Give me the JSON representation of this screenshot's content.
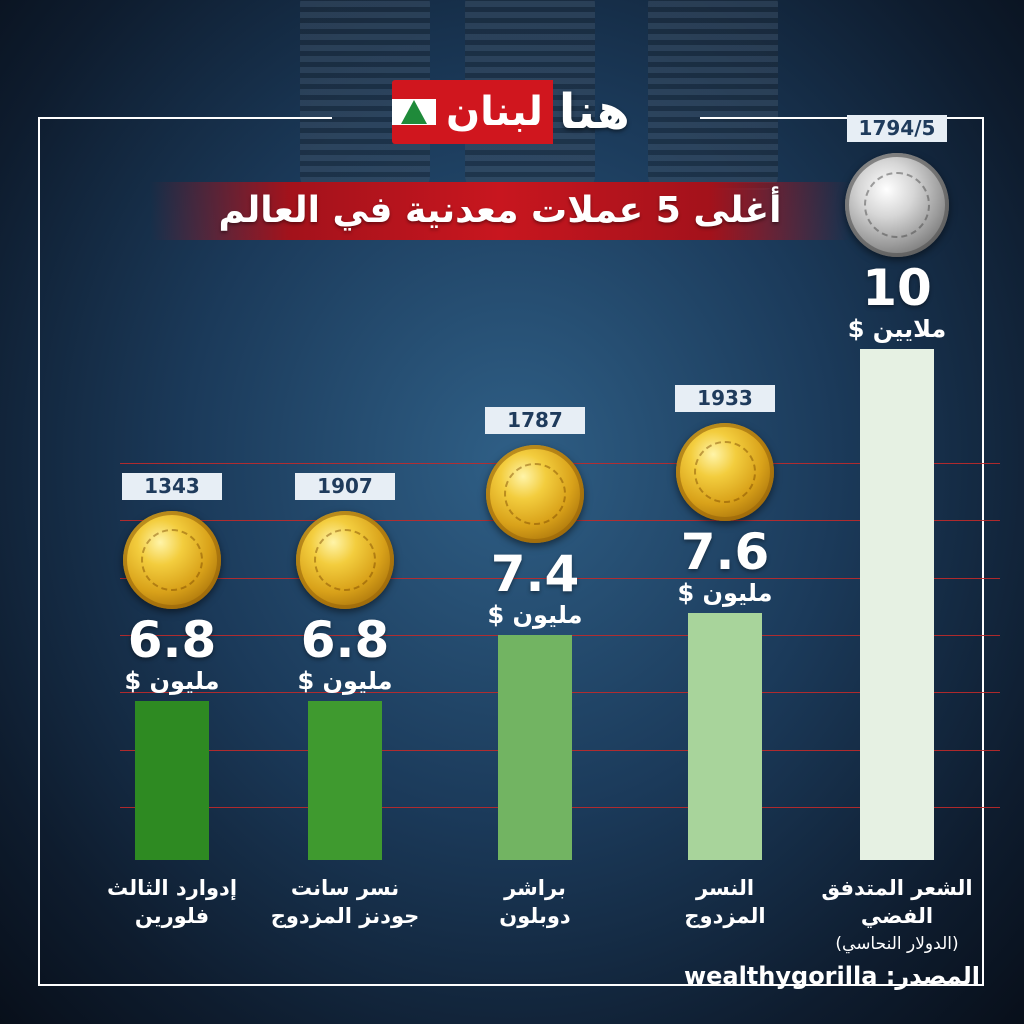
{
  "brand": {
    "logo_red": "لبنان",
    "logo_white": "هنا"
  },
  "colors": {
    "title_band": "#c8161f",
    "gridline": "#c02a2a",
    "tag_bg": "#e7eef5"
  },
  "chart_data": {
    "type": "bar",
    "title": "أغلى 5 عملات معدنية في العالم",
    "categories": [
      "إدوارد الثالث فلورين",
      "نسر سانت جودنز المزدوج",
      "براشر دوبلون",
      "النسر المزدوج",
      "الشعر المتدفق الفضي (الدولار النحاسي)"
    ],
    "values": [
      6.8,
      6.8,
      7.4,
      7.6,
      10
    ],
    "years": [
      "1343",
      "1907",
      "1787",
      "1933",
      "1794/5"
    ],
    "units": [
      "مليون $",
      "مليون $",
      "مليون $",
      "مليون $",
      "ملايين $"
    ],
    "bar_colors": [
      "#2e8a22",
      "#3f9a2f",
      "#72b462",
      "#a8d49b",
      "#e6f1e3"
    ],
    "coin_types": [
      "gold",
      "gold",
      "gold",
      "gold",
      "silver"
    ],
    "label_lines": [
      [
        "إدوارد الثالث",
        "فلورين"
      ],
      [
        "نسر سانت",
        "جودنز المزدوج"
      ],
      [
        "براشر",
        "دوبلون"
      ],
      [
        "النسر",
        "المزدوج"
      ],
      [
        "الشعر المتدفق الفضي",
        "(الدولار النحاسي)"
      ]
    ],
    "ylim": [
      0,
      10
    ],
    "grid": true,
    "legend": "none"
  },
  "source": "المصدر: wealthygorilla"
}
